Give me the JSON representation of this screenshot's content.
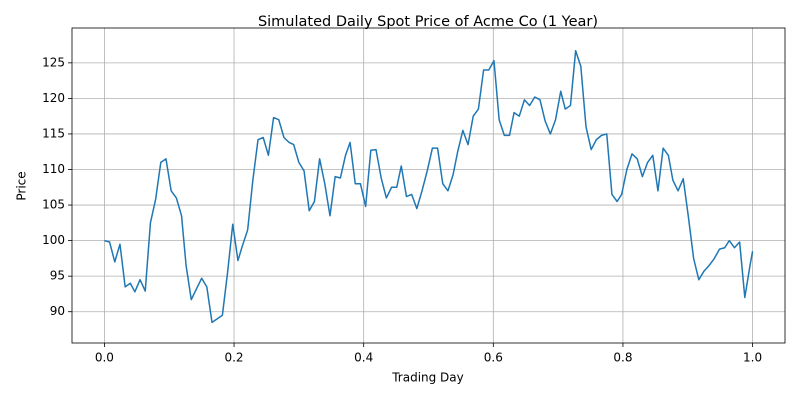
{
  "chart_data": {
    "type": "line",
    "title": "Simulated Daily Spot Price of Acme Co (1 Year)",
    "xlabel": "Trading Day",
    "ylabel": "Price",
    "x": [
      0,
      0.008,
      0.016,
      0.024,
      0.032,
      0.04,
      0.047,
      0.055,
      0.063,
      0.071,
      0.079,
      0.087,
      0.095,
      0.103,
      0.111,
      0.119,
      0.126,
      0.134,
      0.142,
      0.15,
      0.158,
      0.166,
      0.174,
      0.182,
      0.19,
      0.198,
      0.206,
      0.213,
      0.221,
      0.229,
      0.237,
      0.245,
      0.253,
      0.261,
      0.269,
      0.277,
      0.285,
      0.292,
      0.3,
      0.308,
      0.316,
      0.324,
      0.332,
      0.34,
      0.348,
      0.356,
      0.364,
      0.372,
      0.379,
      0.387,
      0.395,
      0.403,
      0.411,
      0.419,
      0.427,
      0.435,
      0.443,
      0.451,
      0.458,
      0.466,
      0.474,
      0.482,
      0.49,
      0.498,
      0.506,
      0.514,
      0.522,
      0.53,
      0.538,
      0.545,
      0.553,
      0.561,
      0.569,
      0.577,
      0.585,
      0.593,
      0.601,
      0.609,
      0.617,
      0.625,
      0.632,
      0.64,
      0.648,
      0.656,
      0.664,
      0.672,
      0.68,
      0.688,
      0.696,
      0.704,
      0.711,
      0.719,
      0.727,
      0.735,
      0.743,
      0.751,
      0.759,
      0.767,
      0.775,
      0.783,
      0.791,
      0.798,
      0.806,
      0.814,
      0.822,
      0.83,
      0.838,
      0.846,
      0.854,
      0.862,
      0.87,
      0.877,
      0.885,
      0.893,
      0.901,
      0.909,
      0.917,
      0.925,
      0.933,
      0.941,
      0.949,
      0.957,
      0.964,
      0.972,
      0.98,
      0.988,
      0.996,
      1.0
    ],
    "series": [
      {
        "color": "#1f77b4",
        "values": [
          100,
          99.8,
          97,
          99.5,
          93.5,
          94,
          92.8,
          94.5,
          92.9,
          102.5,
          105.8,
          111,
          111.5,
          107,
          106,
          103.5,
          96.5,
          91.7,
          93.2,
          94.7,
          93.5,
          88.5,
          89,
          89.5,
          95.5,
          102.3,
          97.2,
          99.3,
          101.5,
          108.5,
          114.2,
          114.5,
          112,
          117.3,
          117,
          114.5,
          113.8,
          113.5,
          111,
          109.8,
          104.2,
          105.5,
          111.5,
          108,
          103.5,
          109,
          108.8,
          112,
          113.8,
          108,
          108,
          104.8,
          112.7,
          112.8,
          108.8,
          106,
          107.5,
          107.5,
          110.5,
          106.2,
          106.5,
          104.5,
          107,
          109.8,
          113,
          113,
          108,
          107,
          109.3,
          112.5,
          115.5,
          113.5,
          117.5,
          118.5,
          124,
          124,
          125.3,
          117,
          114.8,
          114.8,
          118,
          117.5,
          119.8,
          119,
          120.2,
          119.8,
          116.8,
          115,
          117,
          121,
          118.5,
          119,
          126.7,
          124.5,
          116,
          112.8,
          114.2,
          114.8,
          115,
          106.5,
          105.5,
          106.5,
          110,
          112.2,
          111.5,
          109,
          111,
          112,
          107,
          113,
          112,
          108.5,
          107,
          108.7,
          103.3,
          97.5,
          94.5,
          95.7,
          96.5,
          97.5,
          98.8,
          99,
          100,
          99,
          99.8,
          92,
          96.5,
          98.5
        ]
      }
    ],
    "xlim": [
      -0.05,
      1.05
    ],
    "ylim": [
      85.6,
      129.9
    ],
    "xticks": [
      {
        "value": 0,
        "label": "0.0"
      },
      {
        "value": 0.2,
        "label": "0.2"
      },
      {
        "value": 0.4,
        "label": "0.4"
      },
      {
        "value": 0.6,
        "label": "0.6"
      },
      {
        "value": 0.8,
        "label": "0.8"
      },
      {
        "value": 1,
        "label": "1.0"
      }
    ],
    "yticks": [
      90,
      95,
      100,
      105,
      110,
      115,
      120,
      125
    ],
    "grid": true
  }
}
